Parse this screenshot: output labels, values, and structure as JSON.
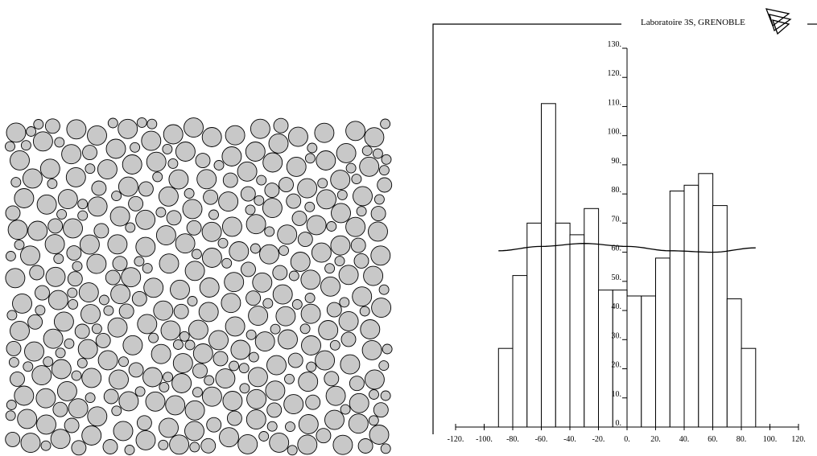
{
  "header": {
    "lab_label": "Laboratoire 3S, GRENOBLE",
    "logo_icon": "triangles-logo-icon"
  },
  "packing": {
    "fill_color": "#c8c8c8",
    "stroke_color": "#000000",
    "radius_sizes": [
      6,
      9,
      12
    ]
  },
  "chart_data": {
    "type": "bar",
    "x": [
      -85,
      -75,
      -65,
      -55,
      -45,
      -35,
      -25,
      -15,
      -5,
      5,
      15,
      25,
      35,
      45,
      55,
      65,
      75,
      85
    ],
    "values": [
      27,
      52,
      70,
      111,
      70,
      66,
      75,
      47,
      47,
      45,
      45,
      58,
      81,
      83,
      87,
      76,
      44,
      27
    ],
    "bin_width": 10,
    "xlim": [
      -120,
      120
    ],
    "ylim": [
      0,
      130
    ],
    "x_ticks": [
      -120,
      -100,
      -80,
      -60,
      -40,
      -20,
      0,
      20,
      40,
      60,
      80,
      100,
      120
    ],
    "x_tick_labels": [
      "-120.",
      "-100.",
      "-80.",
      "-60.",
      "-40.",
      "-20.",
      "0.",
      "20.",
      "40.",
      "60.",
      "80.",
      "100.",
      "120."
    ],
    "y_ticks": [
      0,
      10,
      20,
      30,
      40,
      50,
      60,
      70,
      80,
      90,
      100,
      110,
      120,
      130
    ],
    "y_tick_labels": [
      "0.",
      "10.",
      "20.",
      "30.",
      "40.",
      "50.",
      "60.",
      "70.",
      "80.",
      "90.",
      "100.",
      "110.",
      "120.",
      "130."
    ],
    "curve": {
      "x": [
        -90,
        -60,
        -30,
        0,
        30,
        60,
        90
      ],
      "y": [
        60.5,
        62,
        63,
        62,
        60.5,
        60,
        61.5
      ]
    },
    "title": "",
    "xlabel": "",
    "ylabel": "",
    "grid": false
  }
}
